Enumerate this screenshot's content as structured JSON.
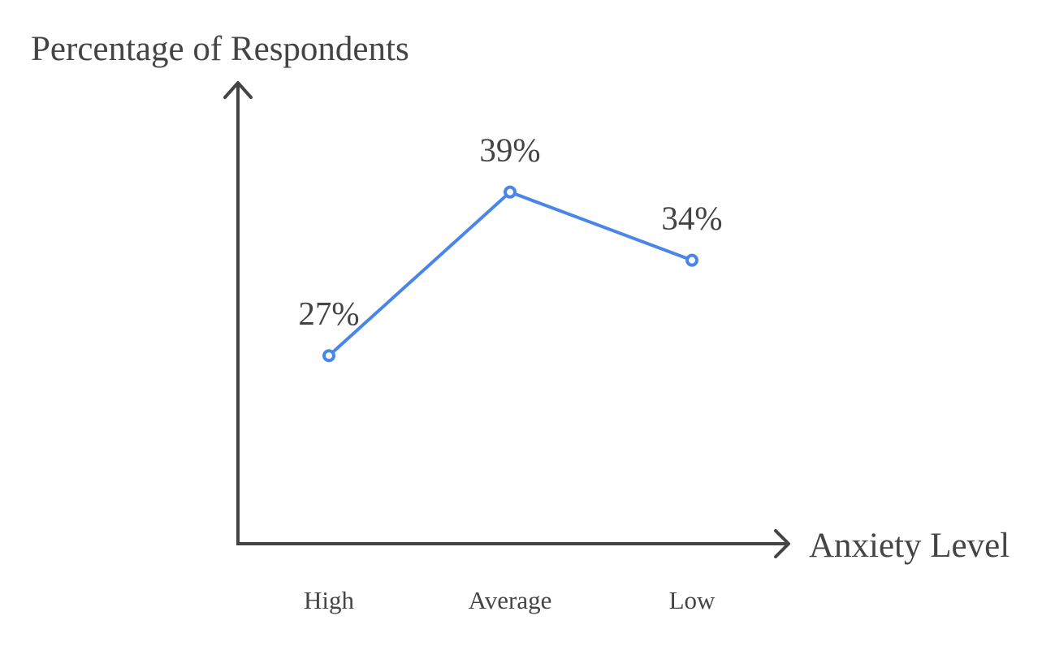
{
  "chart_data": {
    "type": "line",
    "xlabel": "Anxiety Level",
    "ylabel": "Percentage of Respondents",
    "categories": [
      "High",
      "Average",
      "Low"
    ],
    "series": [
      {
        "values": [
          27,
          39,
          34
        ],
        "labels": [
          "27%",
          "39%",
          "34%"
        ],
        "color": "#4A86E8"
      }
    ],
    "ylim": [
      13.2,
      46.9
    ],
    "grid": false,
    "axis_color": "#444444"
  }
}
